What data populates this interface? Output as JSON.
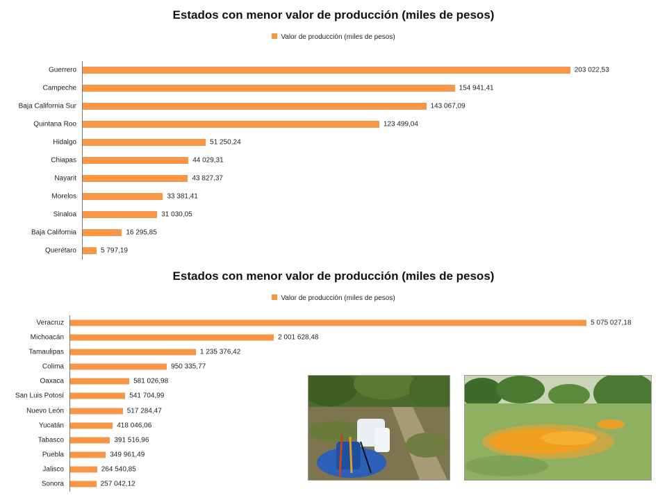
{
  "colors": {
    "bar": "#F79646",
    "axis": "#777777"
  },
  "chart_data": [
    {
      "type": "bar",
      "orientation": "horizontal",
      "title": "Estados con menor valor de producción (miles de pesos)",
      "legend": {
        "entries": [
          "Valor de producción (miles de pesos)"
        ],
        "position": "top"
      },
      "series": [
        {
          "name": "Valor de producción (miles de pesos)",
          "values": [
            203022.53,
            154941.41,
            143067.09,
            123499.04,
            51250.24,
            44029.31,
            43827.37,
            33381.41,
            31030.05,
            16295.85,
            5797.19
          ]
        }
      ],
      "categories": [
        "Guerrero",
        "Campeche",
        "Baja California Sur",
        "Quintana Roo",
        "Hidalgo",
        "Chiapas",
        "Nayarit",
        "Morelos",
        "Sinaloa",
        "Baja California",
        "Querétaro"
      ],
      "data_labels": [
        "203 022,53",
        "154 941,41",
        "143 067,09",
        "123 499,04",
        "51 250,24",
        "44 029,31",
        "43 827,37",
        "33 381,41",
        "31 030,05",
        "16 295,85",
        "5 797,19"
      ],
      "xlim": [
        0,
        230000
      ],
      "grid": false
    },
    {
      "type": "bar",
      "orientation": "horizontal",
      "title": "Estados con menor valor de producción (miles de pesos)",
      "legend": {
        "entries": [
          "Valor de producción (miles de pesos)"
        ],
        "position": "top"
      },
      "series": [
        {
          "name": "Valor de producción (miles de pesos)",
          "values": [
            5075027.18,
            2001628.48,
            1235376.42,
            950335.77,
            581026.98,
            541704.99,
            517284.47,
            418046.06,
            391516.96,
            349961.49,
            264540.85,
            257042.12
          ]
        }
      ],
      "categories": [
        "Veracruz",
        "Michoacán",
        "Tamaulipas",
        "Colima",
        "Oaxaca",
        "San Luis Potosí",
        "Nuevo León",
        "Yucatán",
        "Tabasco",
        "Puebla",
        "Jalisco",
        "Sonora"
      ],
      "data_labels": [
        "5 075 027,18",
        "2 001 628,48",
        "1 235 376,42",
        "950 335,77",
        "581 026,98",
        "541 704,99",
        "517 284,47",
        "418 046,06",
        "391 516,96",
        "349 961,49",
        "264 540,85",
        "257 042,12"
      ],
      "xlim": [
        0,
        5600000
      ],
      "grid": false
    }
  ],
  "photos": [
    {
      "subject": "sprayer-in-orchard"
    },
    {
      "subject": "fallen-oranges-in-orchard"
    }
  ]
}
